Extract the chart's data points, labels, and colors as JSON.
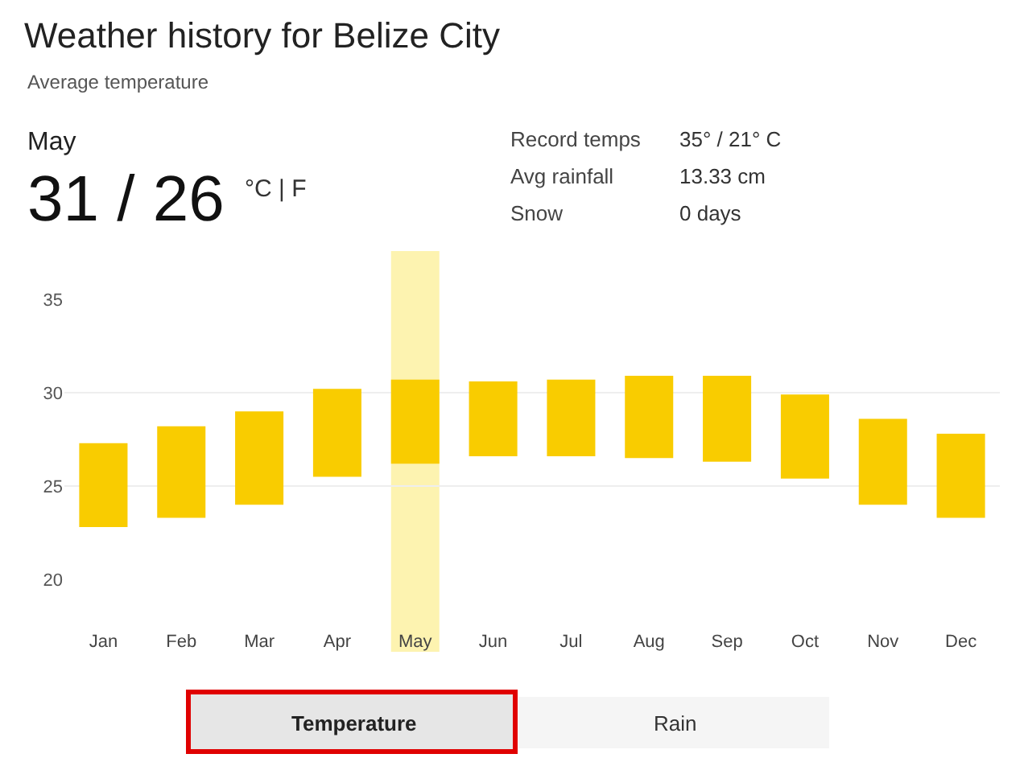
{
  "chart_data": {
    "type": "bar",
    "title": "Weather history for Belize City",
    "subtitle": "Average temperature",
    "categories": [
      "Jan",
      "Feb",
      "Mar",
      "Apr",
      "May",
      "Jun",
      "Jul",
      "Aug",
      "Sep",
      "Oct",
      "Nov",
      "Dec"
    ],
    "base": [
      22.8,
      23.3,
      24.0,
      25.5,
      26.2,
      26.6,
      26.6,
      26.5,
      26.3,
      25.4,
      24.0,
      23.3
    ],
    "values": [
      4.5,
      4.9,
      5.0,
      4.7,
      4.5,
      4.0,
      4.1,
      4.4,
      4.6,
      4.5,
      4.6,
      4.5
    ],
    "color": "#f9cc00",
    "ylim": [
      20,
      35
    ],
    "yticks": [
      20,
      25,
      30,
      35
    ],
    "grid": "y",
    "bands": [
      {
        "axis": "x",
        "from": "May",
        "to": "May",
        "color": "#fdf3b0"
      }
    ],
    "annotations": [
      "May",
      "31 / 26",
      "°C | F",
      "Record temps",
      "35° / 21° C",
      "Avg rainfall",
      "13.33 cm",
      "Snow",
      "0 days",
      "Temperature",
      "Rain"
    ]
  }
}
